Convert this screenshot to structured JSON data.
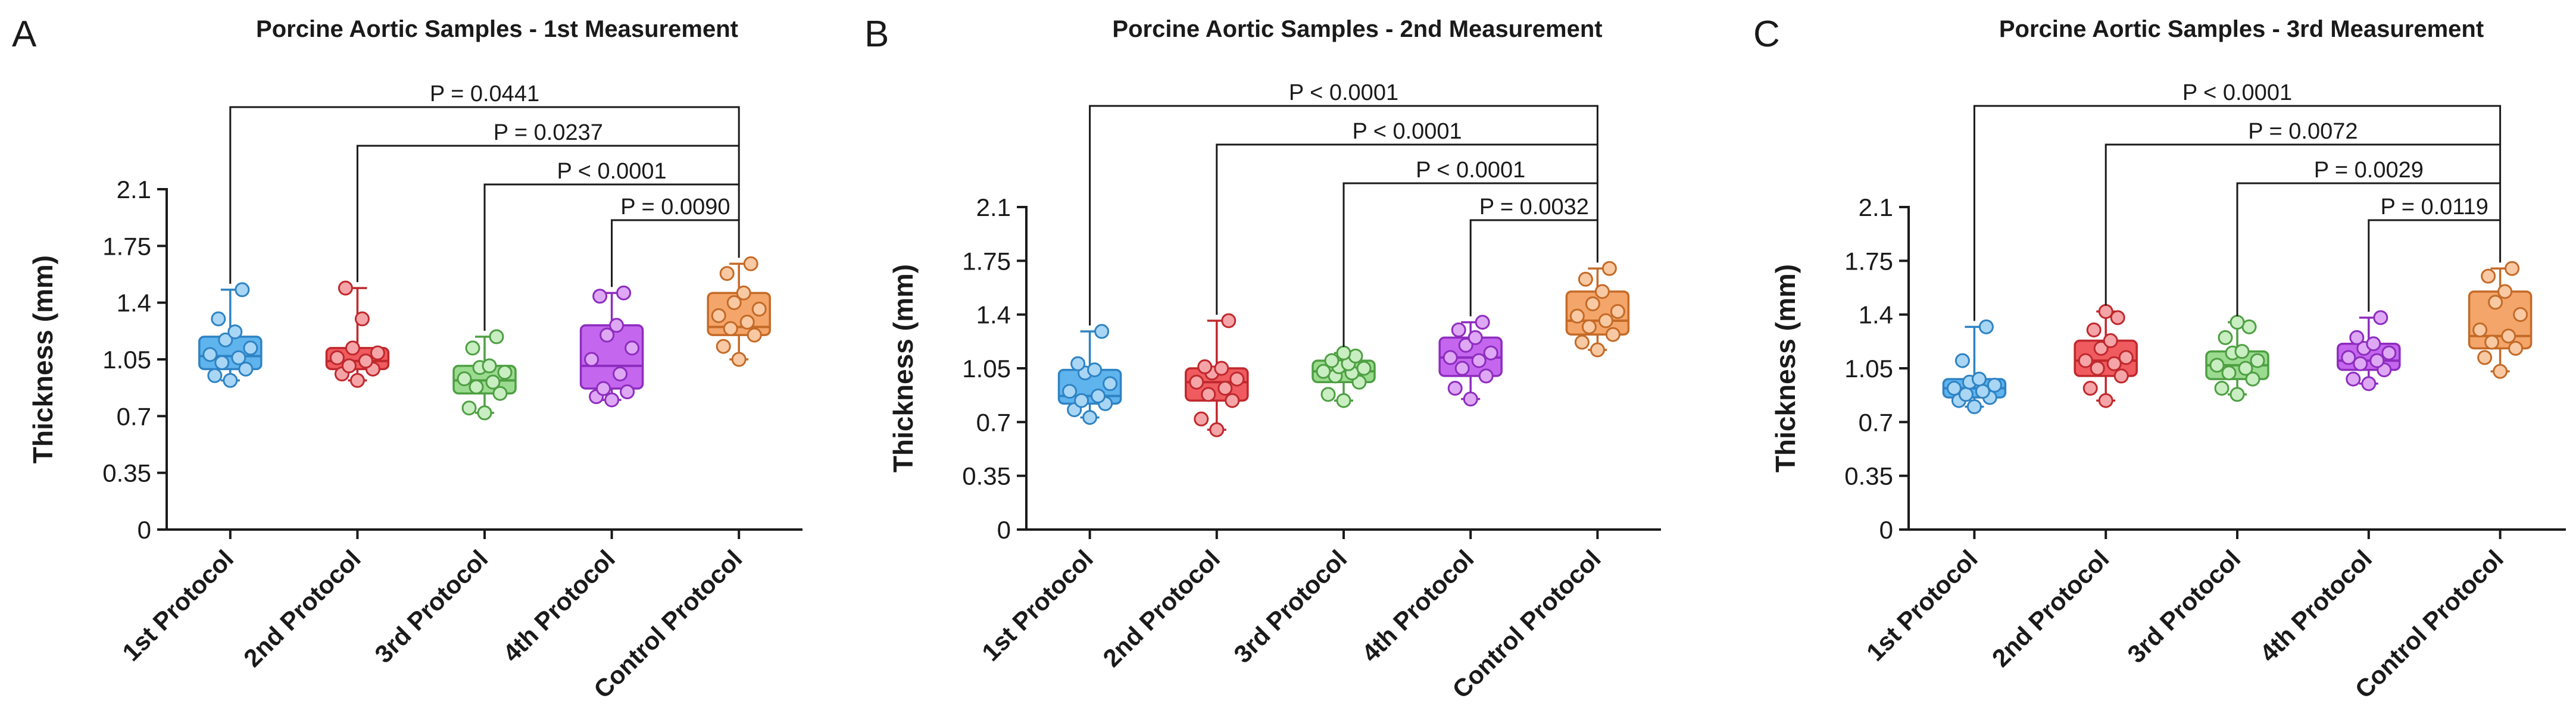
{
  "figure": {
    "colors": {
      "axis": "#1a1a1a",
      "protocols": [
        {
          "fill": "#5fb4ee",
          "stroke": "#2e83c4",
          "point": "#a9d6f5"
        },
        {
          "fill": "#ef5b5f",
          "stroke": "#c0282d",
          "point": "#f5a5a7"
        },
        {
          "fill": "#9bdb8f",
          "stroke": "#4e9f43",
          "point": "#c9eec2"
        },
        {
          "fill": "#c467ee",
          "stroke": "#8e2cbf",
          "point": "#dea8f5"
        },
        {
          "fill": "#f4a56a",
          "stroke": "#c46a27",
          "point": "#f9c9a3"
        }
      ]
    }
  },
  "chart_data": [
    {
      "panel_letter": "A",
      "type": "box",
      "title": "Porcine Aortic Samples - 1st Measurement",
      "ylabel": "Thickness (mm)",
      "xlabel": "",
      "ylim": [
        0,
        2.1
      ],
      "yticks": [
        "0",
        "0.35",
        "0.7",
        "1.05",
        "1.4",
        "1.75",
        "2.1"
      ],
      "categories": [
        "1st Protocol",
        "2nd Protocol",
        "3rd Protocol",
        "4th Protocol",
        "Control Protocol"
      ],
      "boxes": [
        {
          "min": 0.92,
          "q1": 0.99,
          "median": 1.07,
          "q3": 1.19,
          "max": 1.48
        },
        {
          "min": 0.92,
          "q1": 0.99,
          "median": 1.04,
          "q3": 1.12,
          "max": 1.49
        },
        {
          "min": 0.72,
          "q1": 0.84,
          "median": 0.92,
          "q3": 1.01,
          "max": 1.19
        },
        {
          "min": 0.8,
          "q1": 0.87,
          "median": 1.01,
          "q3": 1.26,
          "max": 1.46
        },
        {
          "min": 1.05,
          "q1": 1.2,
          "median": 1.25,
          "q3": 1.46,
          "max": 1.64
        }
      ],
      "points": [
        [
          0.92,
          0.95,
          0.99,
          1.03,
          1.06,
          1.08,
          1.12,
          1.17,
          1.22,
          1.3,
          1.48
        ],
        [
          0.92,
          0.96,
          0.99,
          1.01,
          1.04,
          1.06,
          1.09,
          1.12,
          1.3,
          1.49
        ],
        [
          0.72,
          0.75,
          0.84,
          0.88,
          0.91,
          0.93,
          0.97,
          1.0,
          1.01,
          1.12,
          1.19
        ],
        [
          0.8,
          0.82,
          0.85,
          0.87,
          0.96,
          1.05,
          1.12,
          1.2,
          1.26,
          1.44,
          1.46
        ],
        [
          1.05,
          1.13,
          1.2,
          1.24,
          1.28,
          1.32,
          1.36,
          1.4,
          1.46,
          1.58,
          1.64
        ]
      ],
      "comparisons": [
        {
          "from": 0,
          "to": 4,
          "label": "P = 0.0441"
        },
        {
          "from": 1,
          "to": 4,
          "label": "P = 0.0237"
        },
        {
          "from": 2,
          "to": 4,
          "label": "P < 0.0001"
        },
        {
          "from": 3,
          "to": 4,
          "label": "P = 0.0090"
        }
      ]
    },
    {
      "panel_letter": "B",
      "type": "box",
      "title": "Porcine Aortic Samples - 2nd Measurement",
      "ylabel": "Thickness (mm)",
      "xlabel": "",
      "ylim": [
        0,
        2.1
      ],
      "yticks": [
        "0",
        "0.35",
        "0.7",
        "1.05",
        "1.4",
        "1.75",
        "2.1"
      ],
      "categories": [
        "1st Protocol",
        "2nd Protocol",
        "3rd Protocol",
        "4th Protocol",
        "Control Protocol"
      ],
      "boxes": [
        {
          "min": 0.73,
          "q1": 0.82,
          "median": 0.87,
          "q3": 1.04,
          "max": 1.29
        },
        {
          "min": 0.65,
          "q1": 0.84,
          "median": 0.96,
          "q3": 1.05,
          "max": 1.36
        },
        {
          "min": 0.84,
          "q1": 0.96,
          "median": 1.03,
          "q3": 1.1,
          "max": 1.15
        },
        {
          "min": 0.85,
          "q1": 1.0,
          "median": 1.12,
          "q3": 1.25,
          "max": 1.35
        },
        {
          "min": 1.17,
          "q1": 1.27,
          "median": 1.36,
          "q3": 1.55,
          "max": 1.7
        }
      ],
      "points": [
        [
          0.73,
          0.78,
          0.82,
          0.84,
          0.87,
          0.9,
          0.95,
          1.02,
          1.04,
          1.08,
          1.29
        ],
        [
          0.65,
          0.72,
          0.84,
          0.88,
          0.92,
          0.96,
          0.98,
          1.02,
          1.05,
          1.06,
          1.36
        ],
        [
          0.84,
          0.88,
          0.96,
          1.0,
          1.02,
          1.03,
          1.05,
          1.06,
          1.08,
          1.1,
          1.13,
          1.15
        ],
        [
          0.85,
          0.92,
          1.0,
          1.05,
          1.1,
          1.12,
          1.15,
          1.2,
          1.25,
          1.3,
          1.35
        ],
        [
          1.17,
          1.22,
          1.27,
          1.32,
          1.36,
          1.39,
          1.42,
          1.47,
          1.55,
          1.63,
          1.7
        ]
      ],
      "comparisons": [
        {
          "from": 0,
          "to": 4,
          "label": "P < 0.0001"
        },
        {
          "from": 1,
          "to": 4,
          "label": "P < 0.0001"
        },
        {
          "from": 2,
          "to": 4,
          "label": "P < 0.0001"
        },
        {
          "from": 3,
          "to": 4,
          "label": "P = 0.0032"
        }
      ]
    },
    {
      "panel_letter": "C",
      "type": "box",
      "title": "Porcine Aortic Samples - 3rd Measurement",
      "ylabel": "Thickness (mm)",
      "xlabel": "",
      "ylim": [
        0,
        2.1
      ],
      "yticks": [
        "0",
        "0.35",
        "0.7",
        "1.05",
        "1.4",
        "1.75",
        "2.1"
      ],
      "categories": [
        "1st Protocol",
        "2nd Protocol",
        "3rd Protocol",
        "4th Protocol",
        "Control Protocol"
      ],
      "boxes": [
        {
          "min": 0.8,
          "q1": 0.86,
          "median": 0.92,
          "q3": 0.98,
          "max": 1.32
        },
        {
          "min": 0.84,
          "q1": 1.0,
          "median": 1.1,
          "q3": 1.23,
          "max": 1.42
        },
        {
          "min": 0.88,
          "q1": 0.98,
          "median": 1.07,
          "q3": 1.16,
          "max": 1.35
        },
        {
          "min": 0.95,
          "q1": 1.04,
          "median": 1.1,
          "q3": 1.21,
          "max": 1.38
        },
        {
          "min": 1.03,
          "q1": 1.18,
          "median": 1.26,
          "q3": 1.55,
          "max": 1.7
        }
      ],
      "points": [
        [
          0.8,
          0.84,
          0.86,
          0.88,
          0.9,
          0.92,
          0.94,
          0.96,
          0.98,
          1.1,
          1.32
        ],
        [
          0.84,
          0.92,
          1.0,
          1.05,
          1.08,
          1.1,
          1.12,
          1.18,
          1.23,
          1.3,
          1.38,
          1.42
        ],
        [
          0.88,
          0.92,
          0.98,
          1.02,
          1.05,
          1.07,
          1.1,
          1.15,
          1.16,
          1.25,
          1.32,
          1.35
        ],
        [
          0.95,
          0.98,
          1.04,
          1.08,
          1.1,
          1.12,
          1.15,
          1.18,
          1.21,
          1.25,
          1.38
        ],
        [
          1.03,
          1.12,
          1.18,
          1.22,
          1.26,
          1.3,
          1.4,
          1.48,
          1.55,
          1.65,
          1.7
        ]
      ],
      "comparisons": [
        {
          "from": 0,
          "to": 4,
          "label": "P < 0.0001"
        },
        {
          "from": 1,
          "to": 4,
          "label": "P = 0.0072"
        },
        {
          "from": 2,
          "to": 4,
          "label": "P = 0.0029"
        },
        {
          "from": 3,
          "to": 4,
          "label": "P = 0.0119"
        }
      ]
    }
  ]
}
